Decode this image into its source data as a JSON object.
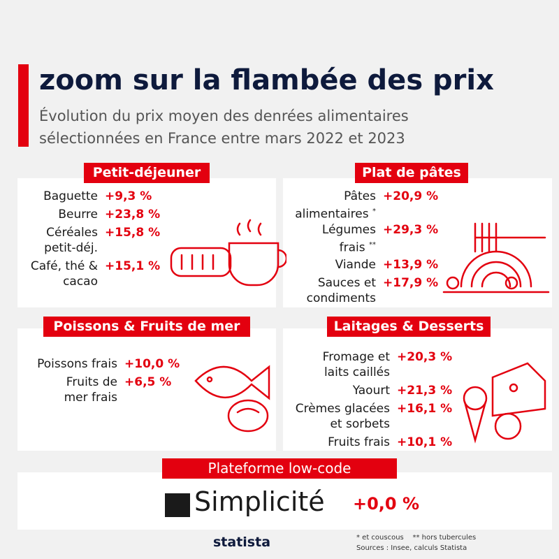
{
  "header": {
    "title": "zoom sur la flambée des prix",
    "subtitle": [
      "Évolution du prix moyen des denrées alimentaires",
      "sélectionnées en France entre mars 2022 et 2023"
    ]
  },
  "sections": [
    {
      "title": "Petit-déjeuner",
      "items": [
        {
          "label": [
            "Baguette"
          ],
          "value": "+9,3 %"
        },
        {
          "label": [
            "Beurre"
          ],
          "value": "+23,8 %"
        },
        {
          "label": [
            "Céréales",
            "petit-déj."
          ],
          "value": "+15,8 %"
        },
        {
          "label": [
            "Café, thé &",
            "cacao"
          ],
          "value": "+15,1 %"
        }
      ]
    },
    {
      "title": "Plat de pâtes",
      "items": [
        {
          "label": [
            "Pâtes",
            "alimentaires"
          ],
          "note": "*",
          "value": "+20,9 %"
        },
        {
          "label": [
            "Légumes",
            "frais"
          ],
          "note": "**",
          "value": "+29,3 %"
        },
        {
          "label": [
            "Viande"
          ],
          "value": "+13,9 %"
        },
        {
          "label": [
            "Sauces et",
            "condiments"
          ],
          "value": "+17,9 %"
        }
      ]
    },
    {
      "title": "Poissons & Fruits de mer",
      "items": [
        {
          "label": [
            "Poissons frais"
          ],
          "value": "+10,0 %"
        },
        {
          "label": [
            "Fruits de",
            "mer frais"
          ],
          "value": "+6,5 %"
        }
      ]
    },
    {
      "title": "Laitages & Desserts",
      "items": [
        {
          "label": [
            "Fromage et",
            "laits caillés"
          ],
          "value": "+20,3 %"
        },
        {
          "label": [
            "Yaourt"
          ],
          "value": "+21,3 %"
        },
        {
          "label": [
            "Crèmes glacées",
            "et sorbets"
          ],
          "value": "+16,1 %"
        },
        {
          "label": [
            "Fruits frais"
          ],
          "value": "+10,1 %"
        }
      ]
    }
  ],
  "platform": {
    "title": "Plateforme low-code",
    "brand": "Simplicité",
    "value": "+0,0 %"
  },
  "footer": {
    "notes": "* et couscous    ** hors tubercules",
    "source": "Sources : Insee, calculs Statista",
    "logo": "statista"
  }
}
